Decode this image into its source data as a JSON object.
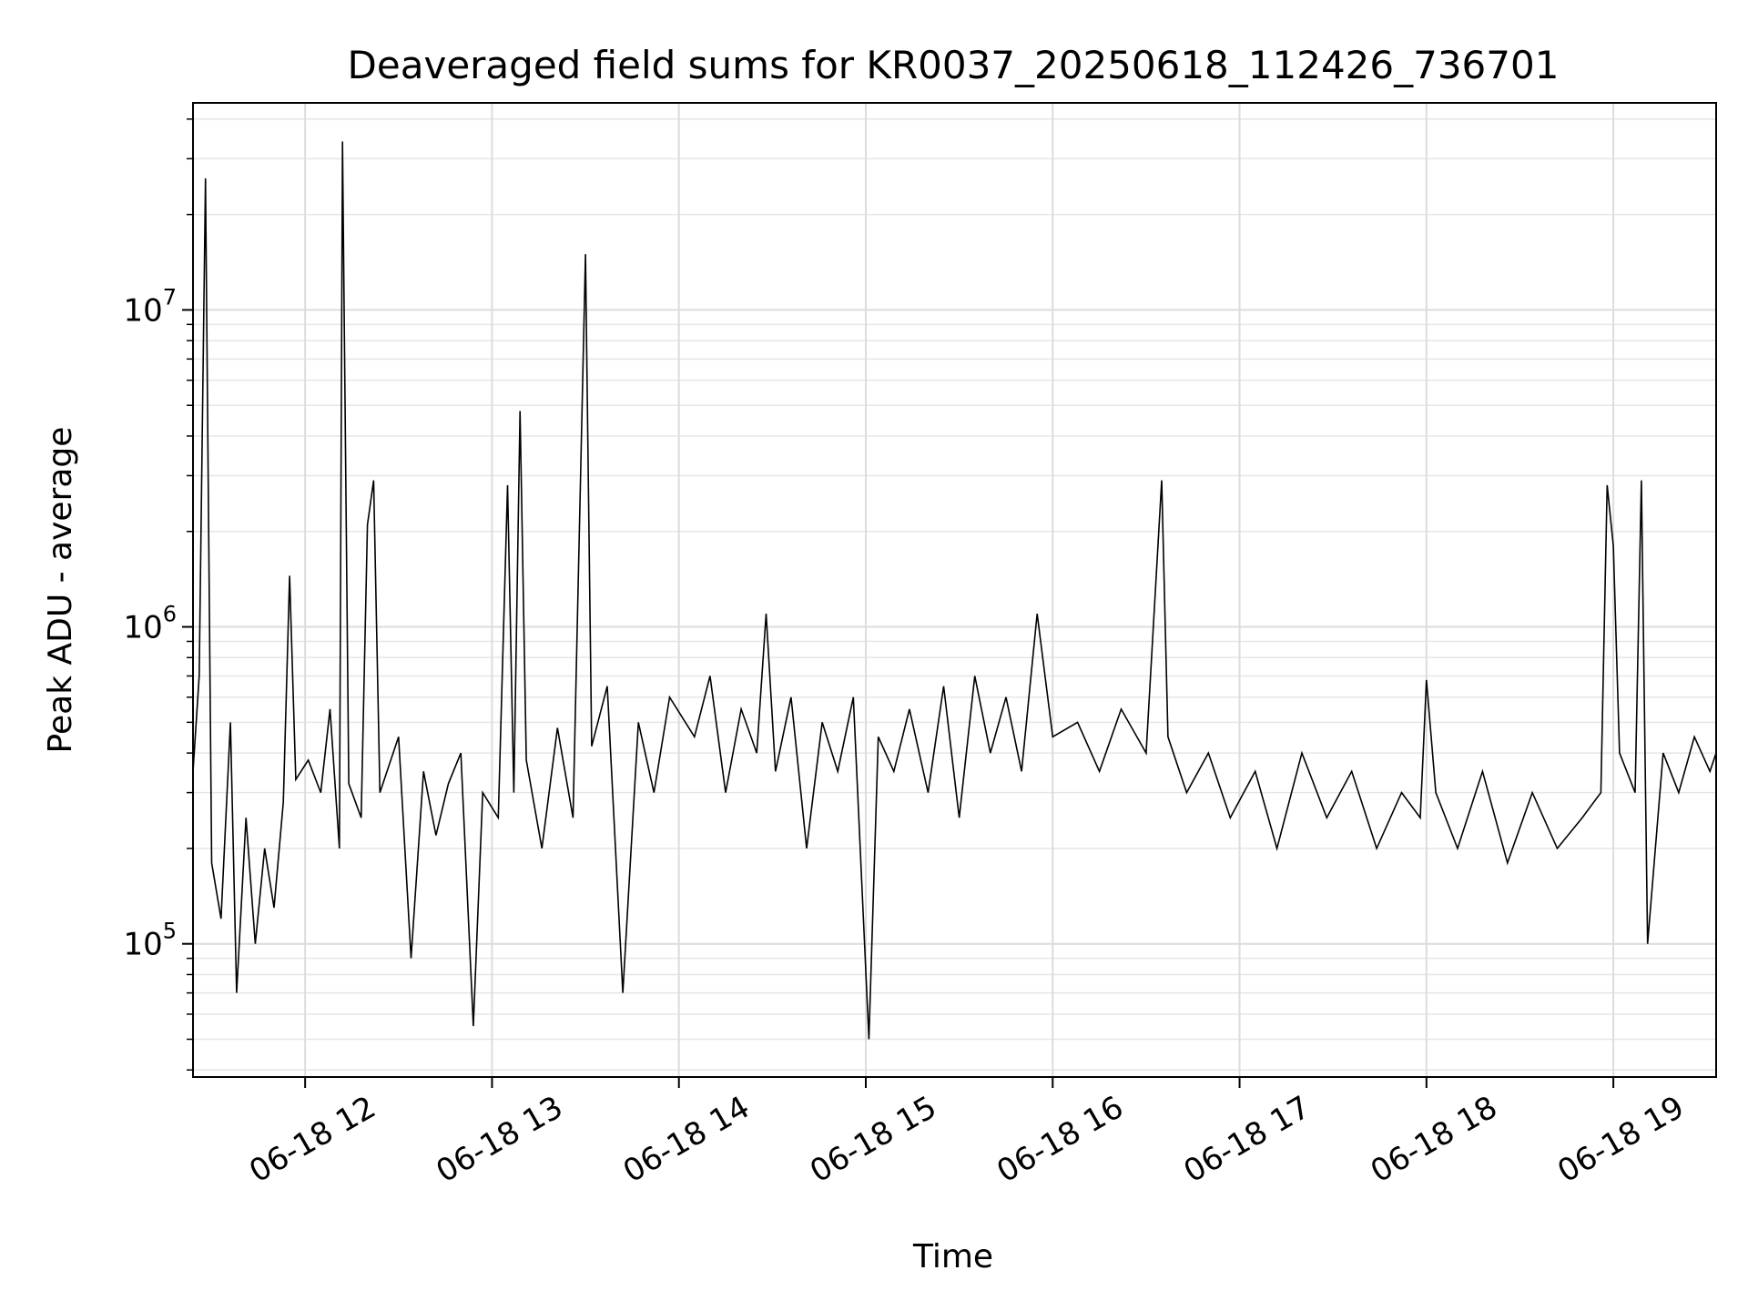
{
  "chart_data": {
    "type": "line",
    "title": "Deaveraged field sums for KR0037_20250618_112426_736701",
    "xlabel": "Time",
    "ylabel": "Peak ADU - average",
    "yscale": "log",
    "grid": true,
    "grid_minor": true,
    "line_color": "#000000",
    "xlim": [
      "2025-06-18 11:24",
      "2025-06-18 19:33"
    ],
    "ylim": [
      38000,
      45000000
    ],
    "x_ticks": [
      {
        "t": "2025-06-18 12:00",
        "label": "06-18 12"
      },
      {
        "t": "2025-06-18 13:00",
        "label": "06-18 13"
      },
      {
        "t": "2025-06-18 14:00",
        "label": "06-18 14"
      },
      {
        "t": "2025-06-18 15:00",
        "label": "06-18 15"
      },
      {
        "t": "2025-06-18 16:00",
        "label": "06-18 16"
      },
      {
        "t": "2025-06-18 17:00",
        "label": "06-18 17"
      },
      {
        "t": "2025-06-18 18:00",
        "label": "06-18 18"
      },
      {
        "t": "2025-06-18 19:00",
        "label": "06-18 19"
      }
    ],
    "y_ticks": [
      {
        "value": 100000,
        "base": "10",
        "exp": "5"
      },
      {
        "value": 1000000,
        "base": "10",
        "exp": "6"
      },
      {
        "value": 10000000,
        "base": "10",
        "exp": "7"
      }
    ],
    "series": [
      {
        "points": [
          [
            "2025-06-18 11:24",
            350000
          ],
          [
            "2025-06-18 11:26",
            700000
          ],
          [
            "2025-06-18 11:28",
            26000000
          ],
          [
            "2025-06-18 11:30",
            180000
          ],
          [
            "2025-06-18 11:33",
            120000
          ],
          [
            "2025-06-18 11:36",
            500000
          ],
          [
            "2025-06-18 11:38",
            70000
          ],
          [
            "2025-06-18 11:41",
            250000
          ],
          [
            "2025-06-18 11:44",
            100000
          ],
          [
            "2025-06-18 11:47",
            200000
          ],
          [
            "2025-06-18 11:50",
            130000
          ],
          [
            "2025-06-18 11:53",
            280000
          ],
          [
            "2025-06-18 11:55",
            1450000
          ],
          [
            "2025-06-18 11:57",
            330000
          ],
          [
            "2025-06-18 12:01",
            380000
          ],
          [
            "2025-06-18 12:05",
            300000
          ],
          [
            "2025-06-18 12:08",
            550000
          ],
          [
            "2025-06-18 12:11",
            200000
          ],
          [
            "2025-06-18 12:12",
            34000000
          ],
          [
            "2025-06-18 12:14",
            320000
          ],
          [
            "2025-06-18 12:18",
            250000
          ],
          [
            "2025-06-18 12:20",
            2100000
          ],
          [
            "2025-06-18 12:22",
            2900000
          ],
          [
            "2025-06-18 12:24",
            300000
          ],
          [
            "2025-06-18 12:30",
            450000
          ],
          [
            "2025-06-18 12:34",
            90000
          ],
          [
            "2025-06-18 12:38",
            350000
          ],
          [
            "2025-06-18 12:42",
            220000
          ],
          [
            "2025-06-18 12:46",
            320000
          ],
          [
            "2025-06-18 12:50",
            400000
          ],
          [
            "2025-06-18 12:54",
            55000
          ],
          [
            "2025-06-18 12:57",
            300000
          ],
          [
            "2025-06-18 13:02",
            250000
          ],
          [
            "2025-06-18 13:05",
            2800000
          ],
          [
            "2025-06-18 13:07",
            300000
          ],
          [
            "2025-06-18 13:09",
            4800000
          ],
          [
            "2025-06-18 13:11",
            380000
          ],
          [
            "2025-06-18 13:16",
            200000
          ],
          [
            "2025-06-18 13:21",
            480000
          ],
          [
            "2025-06-18 13:26",
            250000
          ],
          [
            "2025-06-18 13:30",
            15000000
          ],
          [
            "2025-06-18 13:32",
            420000
          ],
          [
            "2025-06-18 13:37",
            650000
          ],
          [
            "2025-06-18 13:42",
            70000
          ],
          [
            "2025-06-18 13:47",
            500000
          ],
          [
            "2025-06-18 13:52",
            300000
          ],
          [
            "2025-06-18 13:57",
            600000
          ],
          [
            "2025-06-18 14:05",
            450000
          ],
          [
            "2025-06-18 14:10",
            700000
          ],
          [
            "2025-06-18 14:15",
            300000
          ],
          [
            "2025-06-18 14:20",
            550000
          ],
          [
            "2025-06-18 14:25",
            400000
          ],
          [
            "2025-06-18 14:28",
            1100000
          ],
          [
            "2025-06-18 14:31",
            350000
          ],
          [
            "2025-06-18 14:36",
            600000
          ],
          [
            "2025-06-18 14:41",
            200000
          ],
          [
            "2025-06-18 14:46",
            500000
          ],
          [
            "2025-06-18 14:51",
            350000
          ],
          [
            "2025-06-18 14:56",
            600000
          ],
          [
            "2025-06-18 15:01",
            50000
          ],
          [
            "2025-06-18 15:04",
            450000
          ],
          [
            "2025-06-18 15:09",
            350000
          ],
          [
            "2025-06-18 15:14",
            550000
          ],
          [
            "2025-06-18 15:20",
            300000
          ],
          [
            "2025-06-18 15:25",
            650000
          ],
          [
            "2025-06-18 15:30",
            250000
          ],
          [
            "2025-06-18 15:35",
            700000
          ],
          [
            "2025-06-18 15:40",
            400000
          ],
          [
            "2025-06-18 15:45",
            600000
          ],
          [
            "2025-06-18 15:50",
            350000
          ],
          [
            "2025-06-18 15:55",
            1100000
          ],
          [
            "2025-06-18 16:00",
            450000
          ],
          [
            "2025-06-18 16:08",
            500000
          ],
          [
            "2025-06-18 16:15",
            350000
          ],
          [
            "2025-06-18 16:22",
            550000
          ],
          [
            "2025-06-18 16:30",
            400000
          ],
          [
            "2025-06-18 16:35",
            2900000
          ],
          [
            "2025-06-18 16:37",
            450000
          ],
          [
            "2025-06-18 16:43",
            300000
          ],
          [
            "2025-06-18 16:50",
            400000
          ],
          [
            "2025-06-18 16:57",
            250000
          ],
          [
            "2025-06-18 17:05",
            350000
          ],
          [
            "2025-06-18 17:12",
            200000
          ],
          [
            "2025-06-18 17:20",
            400000
          ],
          [
            "2025-06-18 17:28",
            250000
          ],
          [
            "2025-06-18 17:36",
            350000
          ],
          [
            "2025-06-18 17:44",
            200000
          ],
          [
            "2025-06-18 17:52",
            300000
          ],
          [
            "2025-06-18 17:58",
            250000
          ],
          [
            "2025-06-18 18:00",
            680000
          ],
          [
            "2025-06-18 18:03",
            300000
          ],
          [
            "2025-06-18 18:10",
            200000
          ],
          [
            "2025-06-18 18:18",
            350000
          ],
          [
            "2025-06-18 18:26",
            180000
          ],
          [
            "2025-06-18 18:34",
            300000
          ],
          [
            "2025-06-18 18:42",
            200000
          ],
          [
            "2025-06-18 18:50",
            250000
          ],
          [
            "2025-06-18 18:56",
            300000
          ],
          [
            "2025-06-18 18:58",
            2800000
          ],
          [
            "2025-06-18 19:00",
            1800000
          ],
          [
            "2025-06-18 19:02",
            400000
          ],
          [
            "2025-06-18 19:07",
            300000
          ],
          [
            "2025-06-18 19:09",
            2900000
          ],
          [
            "2025-06-18 19:11",
            100000
          ],
          [
            "2025-06-18 19:16",
            400000
          ],
          [
            "2025-06-18 19:21",
            300000
          ],
          [
            "2025-06-18 19:26",
            450000
          ],
          [
            "2025-06-18 19:31",
            350000
          ],
          [
            "2025-06-18 19:33",
            400000
          ]
        ]
      }
    ]
  }
}
